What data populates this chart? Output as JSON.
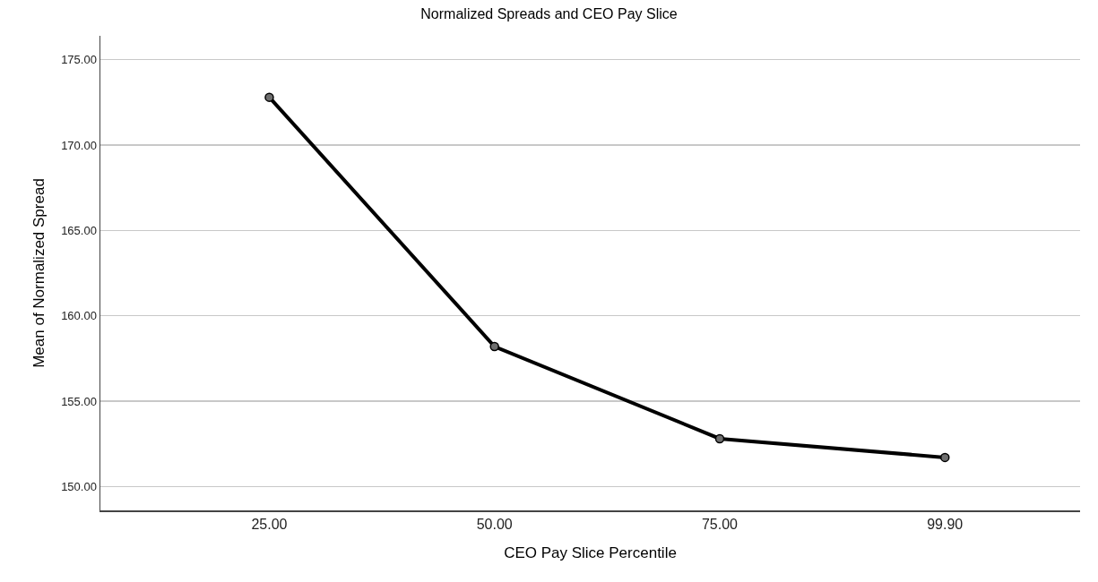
{
  "chart_data": {
    "type": "line",
    "title": "Normalized Spreads and CEO Pay Slice",
    "xlabel": "CEO Pay Slice Percentile",
    "ylabel": "Mean of Normalized Spread",
    "categories": [
      "25.00",
      "50.00",
      "75.00",
      "99.90"
    ],
    "series": [
      {
        "color": "#000000",
        "values": [
          172.8,
          158.2,
          152.8,
          151.7
        ]
      }
    ],
    "ylim": [
      148.6,
      176.4
    ],
    "yticks": [
      {
        "value": 150,
        "label": "150.00"
      },
      {
        "value": 155,
        "label": "155.00"
      },
      {
        "value": 160,
        "label": "160.00"
      },
      {
        "value": 165,
        "label": "165.00"
      },
      {
        "value": 170,
        "label": "170.00"
      },
      {
        "value": 175,
        "label": "175.00"
      }
    ],
    "grid": "y",
    "marker": "circle",
    "line_style": "solid"
  }
}
